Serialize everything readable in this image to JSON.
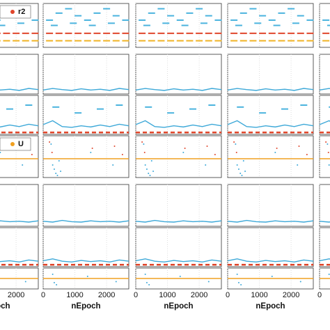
{
  "chart_data": {
    "type": "small-multiples",
    "xlabel": "nEpoch",
    "xlim": [
      0,
      2700
    ],
    "xticks": [
      0,
      1000,
      2000
    ],
    "panels": [
      {
        "ylim": [
          0,
          1
        ],
        "series": [
          {
            "style": "dash",
            "color": "#4ab3de",
            "x": [
              200,
              500,
              800,
              1100,
              1400,
              1700,
              2000,
              2300,
              2600
            ],
            "values": [
              0.62,
              0.78,
              0.88,
              0.72,
              0.62,
              0.78,
              0.88,
              0.72,
              0.62
            ]
          },
          {
            "style": "dash",
            "color": "#4ab3de",
            "x": [
              350,
              950,
              1550,
              2150
            ],
            "values": [
              0.5,
              0.55,
              0.5,
              0.55
            ]
          },
          {
            "name": "r2",
            "style": "dash",
            "color": "#e0452a",
            "x": [
              200,
              500,
              800,
              1100,
              1400,
              1700,
              2000,
              2300,
              2600
            ],
            "values": [
              0.32,
              0.32,
              0.32,
              0.32,
              0.32,
              0.32,
              0.32,
              0.32,
              0.32
            ]
          },
          {
            "style": "dash",
            "color": "#f0b323",
            "x": [
              200,
              500,
              800,
              1100,
              1400,
              1700,
              2000,
              2300,
              2600
            ],
            "values": [
              0.15,
              0.15,
              0.15,
              0.15,
              0.15,
              0.15,
              0.15,
              0.15,
              0.15
            ]
          }
        ]
      },
      {
        "ylim": [
          0,
          1
        ],
        "series": [
          {
            "style": "line",
            "color": "#3ca8d8",
            "x": [
              0,
              300,
              600,
              900,
              1200,
              1500,
              1800,
              2100,
              2400,
              2700
            ],
            "values": [
              0.1,
              0.14,
              0.11,
              0.09,
              0.13,
              0.1,
              0.12,
              0.09,
              0.14,
              0.11
            ]
          }
        ]
      },
      {
        "ylim": [
          0,
          1
        ],
        "series": [
          {
            "style": "line",
            "color": "#3ca8d8",
            "x": [
              0,
              300,
              600,
              900,
              1200,
              1500,
              1800,
              2100,
              2400,
              2700
            ],
            "values": [
              0.25,
              0.35,
              0.2,
              0.18,
              0.22,
              0.19,
              0.24,
              0.2,
              0.26,
              0.22
            ]
          },
          {
            "style": "dash",
            "color": "#4ab3de",
            "x": [
              400,
              1100,
              1800,
              2400
            ],
            "values": [
              0.7,
              0.55,
              0.65,
              0.75
            ]
          },
          {
            "style": "dashed",
            "color": "#e0452a",
            "x": [
              0,
              2700
            ],
            "values": [
              0.05,
              0.05
            ]
          }
        ]
      },
      {
        "ylim": [
          0,
          1
        ],
        "series": [
          {
            "name": "U",
            "style": "line",
            "color": "#f0a020",
            "x": [
              0,
              2700
            ],
            "values": [
              0.45,
              0.45
            ]
          },
          {
            "style": "points",
            "color": "#3ca8d8",
            "x": [
              250,
              300,
              350,
              400,
              450,
              500,
              550,
              1500,
              2200
            ],
            "values": [
              0.8,
              0.3,
              0.2,
              0.1,
              0.05,
              0.4,
              0.15,
              0.6,
              0.3
            ]
          },
          {
            "style": "points",
            "color": "#e0452a",
            "x": [
              200,
              280,
              1550,
              2250,
              2500
            ],
            "values": [
              0.85,
              0.6,
              0.7,
              0.75,
              0.55
            ]
          }
        ]
      },
      {
        "ylim": [
          0,
          1
        ],
        "series": [
          {
            "style": "line",
            "color": "#3ca8d8",
            "x": [
              0,
              300,
              600,
              900,
              1200,
              1500,
              1800,
              2100,
              2400,
              2700
            ],
            "values": [
              0.12,
              0.1,
              0.14,
              0.11,
              0.1,
              0.13,
              0.11,
              0.12,
              0.1,
              0.13
            ]
          }
        ]
      },
      {
        "ylim": [
          0,
          1
        ],
        "series": [
          {
            "style": "line",
            "color": "#3ca8d8",
            "x": [
              0,
              300,
              600,
              900,
              1200,
              1500,
              1800,
              2100,
              2400,
              2700
            ],
            "values": [
              0.15,
              0.2,
              0.14,
              0.12,
              0.16,
              0.13,
              0.15,
              0.12,
              0.17,
              0.14
            ]
          },
          {
            "style": "dashed",
            "color": "#e0452a",
            "x": [
              0,
              2700
            ],
            "values": [
              0.05,
              0.05
            ]
          }
        ]
      },
      {
        "ylim": [
          0,
          1
        ],
        "series": [
          {
            "style": "line",
            "color": "#f0a020",
            "x": [
              0,
              2700
            ],
            "values": [
              0.5,
              0.5
            ]
          },
          {
            "style": "points",
            "color": "#3ca8d8",
            "x": [
              300,
              350,
              420,
              1400,
              2300
            ],
            "values": [
              0.7,
              0.3,
              0.2,
              0.6,
              0.35
            ]
          }
        ]
      }
    ]
  }
}
